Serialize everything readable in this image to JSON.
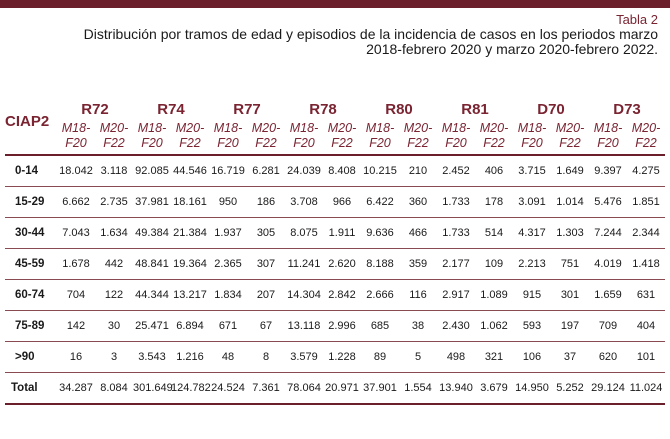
{
  "caption": {
    "label": "Tabla 2",
    "title": "Distribución por tramos de edad y episodios de la incidencia de casos en los periodos marzo 2018-febrero 2020 y marzo 2020-febrero 2022."
  },
  "table": {
    "corner_label": "CIAP2",
    "codes": [
      "R72",
      "R74",
      "R77",
      "R78",
      "R80",
      "R81",
      "D70",
      "D73"
    ],
    "period_a": [
      "M18-",
      "F20"
    ],
    "period_b": [
      "M20-",
      "F22"
    ],
    "rows": [
      {
        "age": "0-14",
        "values": [
          "18.042",
          "3.118",
          "92.085",
          "44.546",
          "16.719",
          "6.281",
          "24.039",
          "8.408",
          "10.215",
          "210",
          "2.452",
          "406",
          "3.715",
          "1.649",
          "9.397",
          "4.275"
        ]
      },
      {
        "age": "15-29",
        "values": [
          "6.662",
          "2.735",
          "37.981",
          "18.161",
          "950",
          "186",
          "3.708",
          "966",
          "6.422",
          "360",
          "1.733",
          "178",
          "3.091",
          "1.014",
          "5.476",
          "1.851"
        ]
      },
      {
        "age": "30-44",
        "values": [
          "7.043",
          "1.634",
          "49.384",
          "21.384",
          "1.937",
          "305",
          "8.075",
          "1.911",
          "9.636",
          "466",
          "1.733",
          "514",
          "4.317",
          "1.303",
          "7.244",
          "2.344"
        ]
      },
      {
        "age": "45-59",
        "values": [
          "1.678",
          "442",
          "48.841",
          "19.364",
          "2.365",
          "307",
          "11.241",
          "2.620",
          "8.188",
          "359",
          "2.177",
          "109",
          "2.213",
          "751",
          "4.019",
          "1.418"
        ]
      },
      {
        "age": "60-74",
        "values": [
          "704",
          "122",
          "44.344",
          "13.217",
          "1.834",
          "207",
          "14.304",
          "2.842",
          "2.666",
          "116",
          "2.917",
          "1.089",
          "915",
          "301",
          "1.659",
          "631"
        ]
      },
      {
        "age": "75-89",
        "values": [
          "142",
          "30",
          "25.471",
          "6.894",
          "671",
          "67",
          "13.118",
          "2.996",
          "685",
          "38",
          "2.430",
          "1.062",
          "593",
          "197",
          "709",
          "404"
        ]
      },
      {
        "age": ">90",
        "values": [
          "16",
          "3",
          "3.543",
          "1.216",
          "48",
          "8",
          "3.579",
          "1.228",
          "89",
          "5",
          "498",
          "321",
          "106",
          "37",
          "620",
          "101"
        ]
      },
      {
        "age": "Total",
        "values": [
          "34.287",
          "8.084",
          "301.649",
          "124.782",
          "24.524",
          "7.361",
          "78.064",
          "20.971",
          "37.901",
          "1.554",
          "13.940",
          "3.679",
          "14.950",
          "5.252",
          "29.124",
          "11.024"
        ]
      }
    ]
  }
}
